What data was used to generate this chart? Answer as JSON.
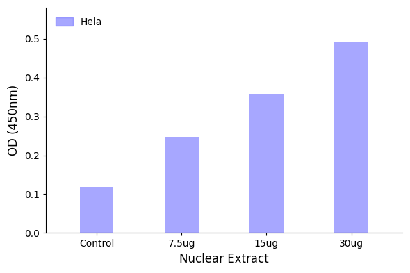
{
  "categories": [
    "Control",
    "7.5ug",
    "15ug",
    "30ug"
  ],
  "values": [
    0.118,
    0.248,
    0.357,
    0.49
  ],
  "bar_color": "#7878ff",
  "bar_alpha": 0.65,
  "xlabel": "Nuclear Extract",
  "ylabel": "OD (450nm)",
  "ylim": [
    0,
    0.58
  ],
  "yticks": [
    0.0,
    0.1,
    0.2,
    0.3,
    0.4,
    0.5
  ],
  "legend_label": "Hela",
  "legend_color": "#7878ff",
  "label_fontsize": 12,
  "tick_fontsize": 10,
  "bar_width": 0.4,
  "background_color": "#ffffff"
}
